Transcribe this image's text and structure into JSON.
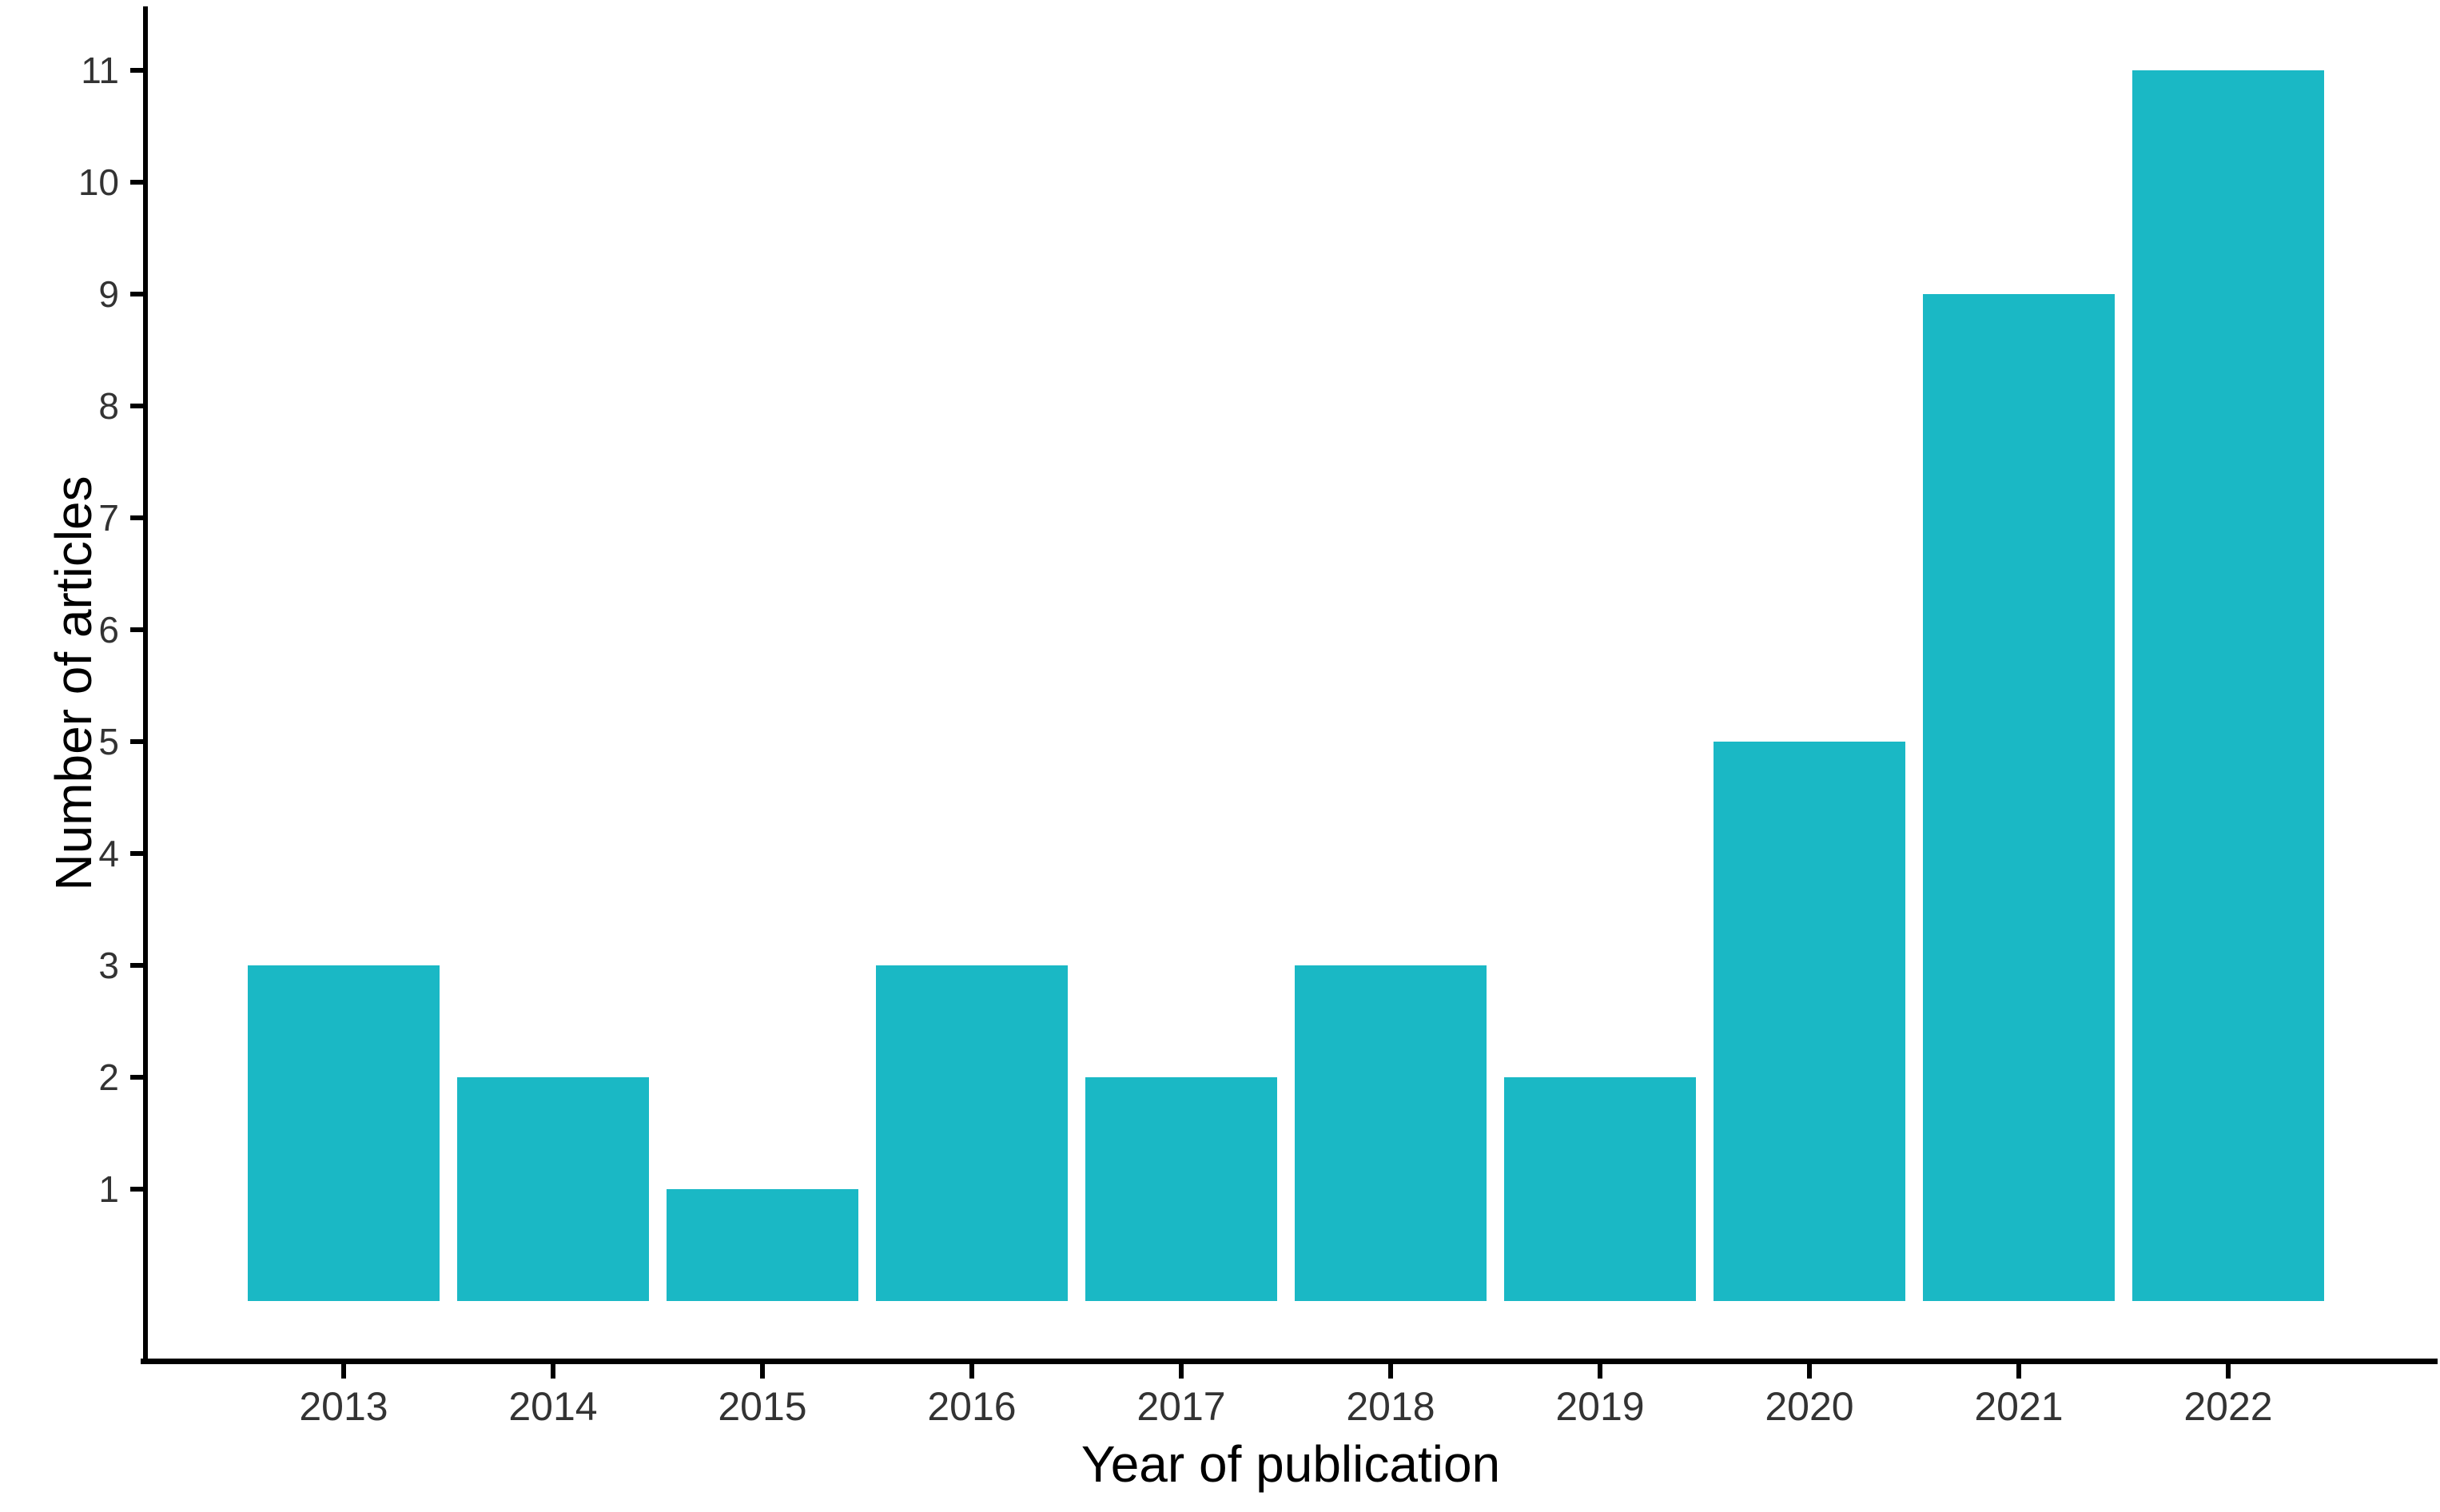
{
  "chart_data": {
    "type": "bar",
    "title": "",
    "categories": [
      "2013",
      "2014",
      "2015",
      "2016",
      "2017",
      "2018",
      "2019",
      "2020",
      "2021",
      "2022"
    ],
    "values": [
      3,
      2,
      1,
      3,
      2,
      3,
      2,
      5,
      9,
      11
    ],
    "xlabel": "Year of publication",
    "ylabel": "Number of articles",
    "y_ticks": [
      1,
      2,
      3,
      4,
      5,
      6,
      7,
      8,
      9,
      10,
      11
    ],
    "ylim": [
      0,
      11.6
    ],
    "grid": false,
    "legend_position": "none",
    "bar_color": "#1ab8c5",
    "axis_color": "#000000",
    "tick_label_color": "#333333",
    "background_color": "#ffffff"
  }
}
